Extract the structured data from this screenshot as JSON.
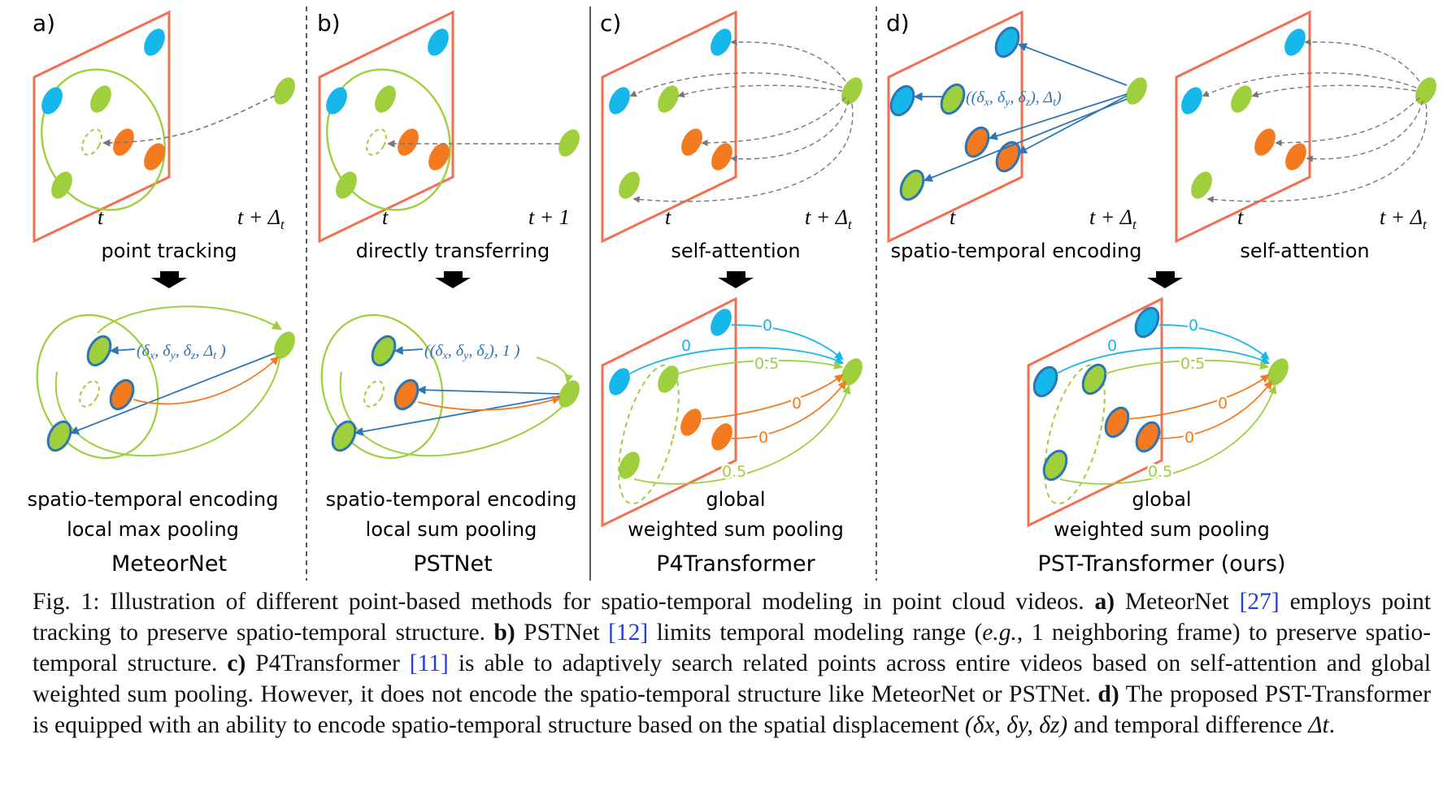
{
  "panels": [
    {
      "letter": "a)",
      "top_caption": "point tracking",
      "label_t": "t",
      "label_t2": "t + Δ",
      "formula": "(δx, δy, δz, Δt )",
      "enc": "spatio-temporal encoding",
      "pool": "local max pooling",
      "name": "MeteorNet"
    },
    {
      "letter": "b)",
      "top_caption": "directly transferring",
      "label_t": "t",
      "label_t2": "t + 1",
      "formula": "((δx, δy, δz), 1 )",
      "enc": "spatio-temporal encoding",
      "pool": "local sum pooling",
      "name": "PSTNet"
    },
    {
      "letter": "c)",
      "top_caption": "self-attention",
      "label_t": "t",
      "label_t2": "t + Δ",
      "enc": "global",
      "pool": "weighted sum pooling",
      "name": "P4Transformer",
      "weights": [
        "0",
        "0",
        "0.5",
        "0",
        "0",
        "0.5"
      ]
    },
    {
      "letter": "d)",
      "top_caption_left": "spatio-temporal encoding",
      "top_caption_right": "self-attention",
      "label_t": "t",
      "label_t2": "t + Δ",
      "formula": "((δx, δy, δz), Δt)",
      "enc": "global",
      "pool": "weighted sum pooling",
      "name": "PST-Transformer (ours)",
      "weights": [
        "0",
        "0",
        "0.5",
        "0",
        "0",
        "0.5"
      ]
    }
  ],
  "colors": {
    "frame": "#f2704f",
    "blue": "#16b7ea",
    "green": "#9fcf3c",
    "orange": "#f47a20",
    "edge": "#2e75b6"
  },
  "caption": {
    "fig_label": "Fig. 1:",
    "intro": "Illustration of different point-based methods for spatio-temporal modeling in point cloud videos.",
    "a_label": "a)",
    "a_text_1": "MeteorNet",
    "a_ref": "[27]",
    "a_text_2": "employs point tracking to preserve spatio-temporal structure.",
    "b_label": "b)",
    "b_text_1": "PSTNet",
    "b_ref": "[12]",
    "b_text_2": "limits temporal modeling range (",
    "b_eg": "e.g.",
    "b_text_3": ", 1 neighboring frame) to preserve spatio-temporal structure.",
    "c_label": "c)",
    "c_text_1": "P4Transformer",
    "c_ref": "[11]",
    "c_text_2": "is able to adaptively search related points across entire videos based on self-attention and global weighted sum pooling. However, it does not encode the spatio-temporal structure like MeteorNet or PSTNet.",
    "d_label": "d)",
    "d_text_1": "The proposed PST-Transformer is equipped with an ability to encode spatio-temporal structure based on the spatial displacement",
    "d_math_1": "(δx, δy, δz)",
    "d_text_2": "and temporal difference",
    "d_math_2": "Δt",
    "d_text_3": "."
  }
}
